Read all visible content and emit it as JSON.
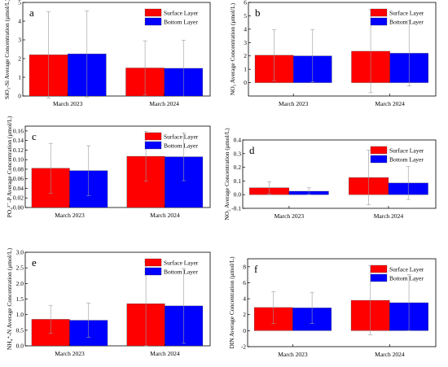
{
  "colors": {
    "surface": "#ff0000",
    "bottom": "#0000ff",
    "axis": "#000000",
    "error": "#999999"
  },
  "chart_data": [
    {
      "type": "bar",
      "label": "a",
      "ylabel": "SiO₃-Si Average Concentration (μmol/L)",
      "ylim": [
        0,
        5
      ],
      "yticks": [
        "0",
        "1",
        "2",
        "3",
        "4",
        "5"
      ],
      "categories": [
        "March 2023",
        "March 2024"
      ],
      "series": [
        {
          "name": "Surface Layer",
          "values": [
            2.2,
            1.5
          ],
          "errors": [
            2.3,
            1.45
          ]
        },
        {
          "name": "Bottom Layer",
          "values": [
            2.25,
            1.48
          ],
          "errors": [
            2.3,
            1.5
          ]
        }
      ],
      "legend": "top-right"
    },
    {
      "type": "bar",
      "label": "b",
      "ylabel": "NO₃ Average Concentration (μmol/L)",
      "ylim": [
        -1,
        6
      ],
      "yticks": [
        "0",
        "1",
        "2",
        "3",
        "4",
        "5",
        "6"
      ],
      "categories": [
        "March 2023",
        "March 2024"
      ],
      "series": [
        {
          "name": "Surface Layer",
          "values": [
            2.05,
            2.35
          ],
          "errors": [
            1.9,
            3.1
          ]
        },
        {
          "name": "Bottom Layer",
          "values": [
            2.0,
            2.2
          ],
          "errors": [
            1.95,
            2.45
          ]
        }
      ],
      "legend": "top-right"
    },
    {
      "type": "bar",
      "label": "c",
      "ylabel": "PO₄³⁻-P Average Concentration (μmol/L)",
      "ylim": [
        0,
        0.17
      ],
      "yticks": [
        "0.00",
        "0.02",
        "0.04",
        "0.06",
        "0.08",
        "0.10",
        "0.12",
        "0.14",
        "0.16"
      ],
      "categories": [
        "March 2023",
        "March 2024"
      ],
      "series": [
        {
          "name": "Surface Layer",
          "values": [
            0.082,
            0.107
          ],
          "errors": [
            0.052,
            0.052
          ]
        },
        {
          "name": "Bottom Layer",
          "values": [
            0.077,
            0.106
          ],
          "errors": [
            0.052,
            0.05
          ]
        }
      ],
      "legend": "top-right"
    },
    {
      "type": "bar",
      "label": "d",
      "ylabel": "NO₂ Average Concentration (μmol/L)",
      "ylim": [
        -0.1,
        0.4
      ],
      "yticks": [
        "-0.1",
        "0.0",
        "0.1",
        "0.2",
        "0.3",
        "0.4"
      ],
      "categories": [
        "March 2023",
        "March 2024"
      ],
      "series": [
        {
          "name": "Surface Layer",
          "values": [
            0.05,
            0.125
          ],
          "errors": [
            0.045,
            0.2
          ]
        },
        {
          "name": "Bottom Layer",
          "values": [
            0.025,
            0.085
          ],
          "errors": [
            0.025,
            0.12
          ]
        }
      ],
      "legend": "top-right"
    },
    {
      "type": "bar",
      "label": "e",
      "ylabel": "NH₄⁺-N Average Concentration (μmol/L)",
      "ylim": [
        0,
        3.0
      ],
      "yticks": [
        "0.0",
        "0.5",
        "1.0",
        "1.5",
        "2.0",
        "2.5",
        "3.0"
      ],
      "categories": [
        "March 2023",
        "March 2024"
      ],
      "series": [
        {
          "name": "Surface Layer",
          "values": [
            0.85,
            1.35
          ],
          "errors": [
            0.45,
            1.35
          ]
        },
        {
          "name": "Bottom Layer",
          "values": [
            0.82,
            1.28
          ],
          "errors": [
            0.55,
            1.2
          ]
        }
      ],
      "legend": "top-right"
    },
    {
      "type": "bar",
      "label": "f",
      "ylabel": "DIN Average Concentration (μmol/L)",
      "ylim": [
        -2,
        9
      ],
      "yticks": [
        "-2",
        "0",
        "2",
        "4",
        "6",
        "8"
      ],
      "categories": [
        "March 2023",
        "March 2024"
      ],
      "series": [
        {
          "name": "Surface Layer",
          "values": [
            2.9,
            3.8
          ],
          "errors": [
            2.0,
            4.3
          ]
        },
        {
          "name": "Bottom Layer",
          "values": [
            2.85,
            3.5
          ],
          "errors": [
            1.95,
            3.5
          ]
        }
      ],
      "legend": "top-right"
    }
  ]
}
